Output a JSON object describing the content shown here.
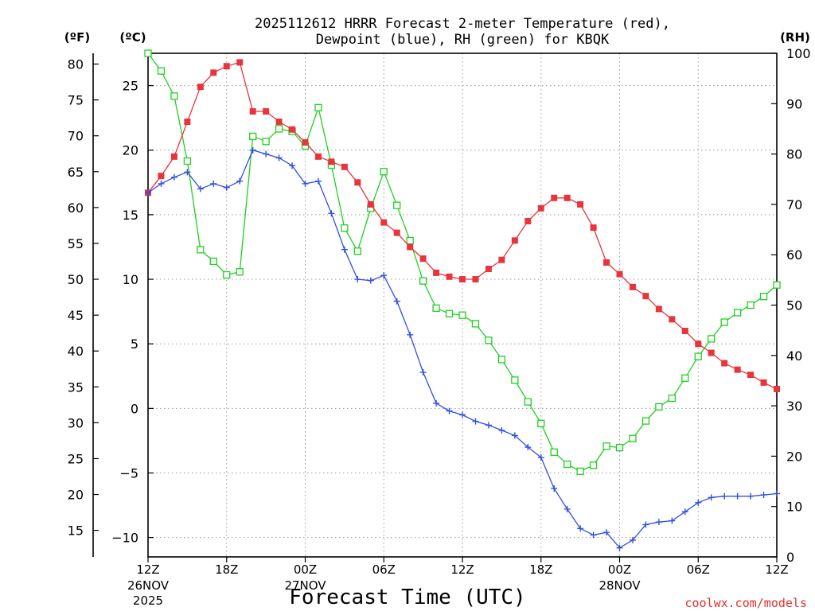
{
  "chart_data": {
    "type": "line",
    "title_line1": "2025112612 HRRR Forecast 2-meter Temperature (red),",
    "title_line2": "Dewpoint (blue), RH (green) for KBQK",
    "unit_f": "(ºF)",
    "unit_c": "(ºC)",
    "unit_rh": "(RH)",
    "xlabel": "Forecast Time (UTC)",
    "watermark": "coolwx.com/models",
    "x_range_hours": [
      0,
      48
    ],
    "c_range": [
      -11.5,
      27.5
    ],
    "f_ticks": [
      15,
      20,
      25,
      30,
      35,
      40,
      45,
      50,
      55,
      60,
      65,
      70,
      75,
      80
    ],
    "c_ticks": [
      -10,
      -5,
      0,
      5,
      10,
      15,
      20,
      25
    ],
    "rh_ticks": [
      0,
      10,
      20,
      30,
      40,
      50,
      60,
      70,
      80,
      90,
      100
    ],
    "x_ticks": [
      {
        "h": 0,
        "label": "12Z",
        "date": "26NOV",
        "year": "2025"
      },
      {
        "h": 6,
        "label": "18Z",
        "date": "",
        "year": ""
      },
      {
        "h": 12,
        "label": "00Z",
        "date": "27NOV",
        "year": ""
      },
      {
        "h": 18,
        "label": "06Z",
        "date": "",
        "year": ""
      },
      {
        "h": 24,
        "label": "12Z",
        "date": "",
        "year": ""
      },
      {
        "h": 30,
        "label": "18Z",
        "date": "",
        "year": ""
      },
      {
        "h": 36,
        "label": "00Z",
        "date": "28NOV",
        "year": ""
      },
      {
        "h": 42,
        "label": "06Z",
        "date": "",
        "year": ""
      },
      {
        "h": 48,
        "label": "12Z",
        "date": "",
        "year": ""
      }
    ],
    "series": [
      {
        "name": "Temperature",
        "unit": "C",
        "color": "#e8343c",
        "marker": "filled-square",
        "values": [
          16.7,
          18.0,
          19.5,
          22.2,
          24.9,
          26.0,
          26.5,
          26.8,
          23.0,
          23.0,
          22.2,
          21.6,
          20.6,
          19.5,
          19.1,
          18.7,
          17.5,
          15.8,
          14.4,
          13.6,
          12.5,
          11.6,
          10.5,
          10.2,
          10.0,
          10.0,
          10.8,
          11.5,
          13.0,
          14.5,
          15.5,
          16.3,
          16.3,
          15.8,
          14.0,
          11.3,
          10.4,
          9.4,
          8.7,
          7.7,
          6.9,
          6.0,
          5.0,
          4.3,
          3.5,
          3.0,
          2.6,
          2.0,
          1.5
        ]
      },
      {
        "name": "Dewpoint",
        "unit": "C",
        "color": "#3050e0",
        "marker": "plus",
        "values": [
          16.7,
          17.4,
          17.9,
          18.3,
          17.0,
          17.4,
          17.1,
          17.6,
          20.0,
          19.7,
          19.4,
          18.8,
          17.4,
          17.6,
          15.1,
          12.3,
          10.0,
          9.9,
          10.3,
          8.3,
          5.7,
          2.8,
          0.4,
          -0.2,
          -0.5,
          -1.0,
          -1.3,
          -1.7,
          -2.1,
          -3.0,
          -3.8,
          -6.2,
          -7.8,
          -9.3,
          -9.8,
          -9.6,
          -10.8,
          -10.2,
          -9.0,
          -8.8,
          -8.7,
          -8.0,
          -7.3,
          -6.9,
          -6.8,
          -6.8,
          -6.8,
          -6.7,
          -6.6
        ]
      },
      {
        "name": "RH",
        "unit": "%",
        "color": "#20d020",
        "marker": "open-square",
        "values": [
          100,
          96.5,
          91.5,
          78.6,
          61,
          58.7,
          56,
          56.6,
          83.5,
          82.5,
          85,
          84.5,
          81.6,
          89.2,
          77.8,
          65.3,
          60.7,
          69.2,
          76.5,
          69.8,
          62.8,
          54.8,
          49.4,
          48.3,
          48,
          46.3,
          43,
          39.2,
          35.1,
          30.8,
          26.5,
          20.8,
          18.4,
          17,
          18.2,
          22,
          21.7,
          23.5,
          27,
          29.8,
          31.5,
          35.5,
          39.8,
          43.3,
          46.6,
          48.5,
          50,
          51.7,
          54
        ]
      }
    ]
  }
}
